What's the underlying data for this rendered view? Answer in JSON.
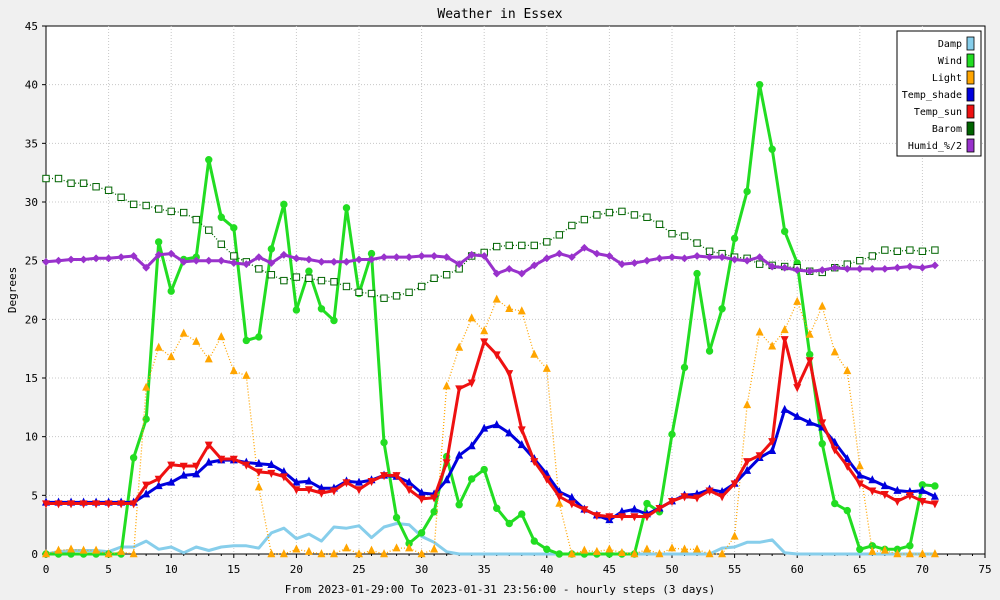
{
  "chart_data": {
    "type": "line",
    "title": "Weather in Essex",
    "xlabel": "From 2023-01-29:00 To 2023-01-31 23:56:00 - hourly steps (3 days)",
    "ylabel": "Degrees",
    "xlim": [
      0,
      75
    ],
    "ylim": [
      0,
      45
    ],
    "xticks": [
      0,
      5,
      10,
      15,
      20,
      25,
      30,
      35,
      40,
      45,
      50,
      55,
      60,
      65,
      70,
      75
    ],
    "yticks": [
      0,
      5,
      10,
      15,
      20,
      25,
      30,
      35,
      40,
      45
    ],
    "grid": true,
    "legend_position": "top-right",
    "series": [
      {
        "name": "Damp",
        "color": "#87ceeb",
        "style": "solid",
        "marker": "none",
        "values": [
          0.0,
          0.2,
          0.3,
          0.3,
          0.3,
          0.2,
          0.6,
          0.6,
          1.1,
          0.4,
          0.6,
          0.1,
          0.6,
          0.3,
          0.6,
          0.7,
          0.7,
          0.5,
          1.8,
          2.2,
          1.3,
          1.7,
          1.1,
          2.3,
          2.2,
          2.4,
          1.4,
          2.3,
          2.6,
          2.5,
          1.5,
          1.0,
          0.2,
          0.0,
          0.0,
          0.0,
          0.0,
          0.0,
          0.0,
          0.0,
          0.0,
          0.0,
          0.0,
          0.0,
          0.0,
          0.0,
          0.0,
          0.0,
          0.0,
          0.0,
          0.0,
          0.0,
          0.0,
          0.0,
          0.5,
          0.6,
          1.0,
          1.0,
          1.2,
          0.1,
          0.0,
          0.0,
          0.0,
          0.0,
          0.0,
          0.0,
          0.0,
          0.0,
          0.0,
          0.0,
          0.0,
          0.0
        ]
      },
      {
        "name": "Wind",
        "color": "#22dd22",
        "style": "solid",
        "marker": "circle",
        "values": [
          0.0,
          0.0,
          0.0,
          0.0,
          0.0,
          0.0,
          0.0,
          8.2,
          11.5,
          26.6,
          22.4,
          25.1,
          25.3,
          33.6,
          28.7,
          27.8,
          18.2,
          18.5,
          26.0,
          29.8,
          20.8,
          24.1,
          20.9,
          19.9,
          29.5,
          22.2,
          25.6,
          9.5,
          3.1,
          0.9,
          1.8,
          3.6,
          8.3,
          4.2,
          6.4,
          7.2,
          3.9,
          2.6,
          3.4,
          1.1,
          0.4,
          0.0,
          0.0,
          0.0,
          0.0,
          0.0,
          0.0,
          0.0,
          4.3,
          3.6,
          10.2,
          15.9,
          23.9,
          17.3,
          20.9,
          26.9,
          30.9,
          40.0,
          34.5,
          27.5,
          24.8,
          17.0,
          9.4,
          4.3,
          3.7,
          0.4,
          0.7,
          0.4,
          0.4,
          0.7,
          5.9,
          5.8
        ]
      },
      {
        "name": "Light",
        "color": "#ffa500",
        "style": "dotted",
        "marker": "triangle",
        "values": [
          0.0,
          0.3,
          0.4,
          0.3,
          0.3,
          0.0,
          0.2,
          0.0,
          14.2,
          17.6,
          16.8,
          18.8,
          18.1,
          16.6,
          18.5,
          15.6,
          15.2,
          5.7,
          0.0,
          0.0,
          0.4,
          0.2,
          0.0,
          0.0,
          0.5,
          0.0,
          0.3,
          0.0,
          0.5,
          0.5,
          0.0,
          0.4,
          14.3,
          17.6,
          20.1,
          19.0,
          21.7,
          20.9,
          20.7,
          17.0,
          15.8,
          4.3,
          0.0,
          0.3,
          0.2,
          0.4,
          0.1,
          0.0,
          0.4,
          0.0,
          0.5,
          0.4,
          0.4,
          0.0,
          0.0,
          1.5,
          12.7,
          18.9,
          17.7,
          19.1,
          21.5,
          18.7,
          21.1,
          17.2,
          15.6,
          7.5,
          0.2,
          0.3,
          0.0,
          0.0,
          0.0,
          0.0
        ]
      },
      {
        "name": "Temp_shade",
        "color": "#0000dd",
        "style": "solid",
        "marker": "triangle",
        "values": [
          4.4,
          4.4,
          4.4,
          4.4,
          4.4,
          4.4,
          4.4,
          4.4,
          5.1,
          5.8,
          6.1,
          6.7,
          6.8,
          7.8,
          8.0,
          8.0,
          7.8,
          7.7,
          7.6,
          7.0,
          6.1,
          6.2,
          5.6,
          5.6,
          6.2,
          6.1,
          6.3,
          6.7,
          6.6,
          6.1,
          5.2,
          5.1,
          6.3,
          8.4,
          9.2,
          10.7,
          11.0,
          10.3,
          9.3,
          8.1,
          6.8,
          5.3,
          4.8,
          3.8,
          3.3,
          2.9,
          3.6,
          3.8,
          3.4,
          3.9,
          4.5,
          5.0,
          5.1,
          5.5,
          5.3,
          6.0,
          7.1,
          8.2,
          8.8,
          12.3,
          11.7,
          11.2,
          10.8,
          9.5,
          8.1,
          6.7,
          6.3,
          5.8,
          5.4,
          5.3,
          5.4,
          4.9
        ]
      },
      {
        "name": "Temp_sun",
        "color": "#ee1111",
        "style": "solid",
        "marker": "downtriangle",
        "values": [
          4.3,
          4.3,
          4.3,
          4.3,
          4.3,
          4.3,
          4.3,
          4.3,
          5.9,
          6.4,
          7.6,
          7.5,
          7.5,
          9.3,
          8.1,
          8.1,
          7.6,
          7.0,
          6.9,
          6.6,
          5.5,
          5.5,
          5.2,
          5.4,
          6.1,
          5.5,
          6.2,
          6.7,
          6.7,
          5.5,
          4.7,
          4.8,
          7.8,
          14.1,
          14.6,
          18.1,
          17.0,
          15.4,
          10.6,
          7.9,
          6.4,
          4.9,
          4.3,
          3.8,
          3.3,
          3.2,
          3.2,
          3.2,
          3.2,
          3.9,
          4.5,
          4.9,
          4.8,
          5.4,
          4.9,
          6.0,
          7.9,
          8.4,
          9.6,
          18.3,
          14.2,
          16.5,
          11.2,
          8.9,
          7.5,
          6.0,
          5.4,
          5.1,
          4.5,
          5.0,
          4.5,
          4.3
        ]
      },
      {
        "name": "Barom",
        "color": "#006400",
        "style": "dotted",
        "marker": "square",
        "values": [
          32.0,
          32.0,
          31.6,
          31.6,
          31.3,
          31.0,
          30.4,
          29.8,
          29.7,
          29.4,
          29.2,
          29.1,
          28.5,
          27.6,
          26.4,
          25.4,
          24.9,
          24.3,
          23.8,
          23.3,
          23.6,
          23.5,
          23.3,
          23.2,
          22.8,
          22.3,
          22.2,
          21.8,
          22.0,
          22.3,
          22.8,
          23.5,
          23.8,
          24.3,
          25.4,
          25.7,
          26.2,
          26.3,
          26.3,
          26.3,
          26.6,
          27.2,
          28.0,
          28.5,
          28.9,
          29.1,
          29.2,
          28.9,
          28.7,
          28.1,
          27.3,
          27.1,
          26.5,
          25.8,
          25.6,
          25.3,
          25.2,
          24.7,
          24.6,
          24.5,
          24.4,
          24.1,
          24.0,
          24.4,
          24.7,
          25.0,
          25.4,
          25.9,
          25.8,
          25.9,
          25.8,
          25.9
        ]
      },
      {
        "name": "Humid_%/2",
        "color": "#9932cc",
        "style": "solid",
        "marker": "diamond",
        "values": [
          24.9,
          25.0,
          25.1,
          25.1,
          25.2,
          25.2,
          25.3,
          25.4,
          24.4,
          25.5,
          25.6,
          24.9,
          25.0,
          25.0,
          25.0,
          24.8,
          24.7,
          25.3,
          24.8,
          25.5,
          25.2,
          25.1,
          24.9,
          24.9,
          24.9,
          25.1,
          25.1,
          25.3,
          25.3,
          25.3,
          25.4,
          25.4,
          25.3,
          24.7,
          25.5,
          25.4,
          23.9,
          24.3,
          23.9,
          24.6,
          25.2,
          25.6,
          25.3,
          26.1,
          25.6,
          25.4,
          24.7,
          24.8,
          25.0,
          25.2,
          25.3,
          25.2,
          25.4,
          25.3,
          25.3,
          25.1,
          25.0,
          25.3,
          24.5,
          24.4,
          24.2,
          24.1,
          24.2,
          24.4,
          24.3,
          24.3,
          24.3,
          24.3,
          24.4,
          24.5,
          24.4,
          24.6
        ]
      }
    ]
  }
}
